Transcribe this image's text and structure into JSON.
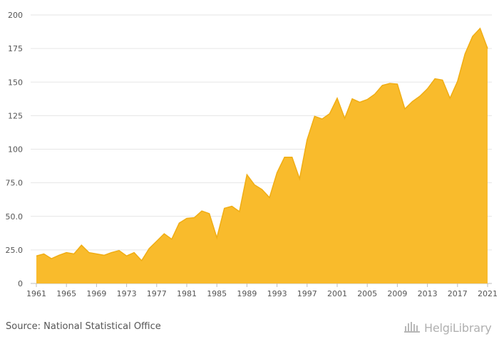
{
  "chart_data": {
    "type": "area",
    "title": "",
    "xlabel": "",
    "ylabel": "",
    "ylim": [
      0,
      200
    ],
    "y_ticks": [
      "0",
      "25.0",
      "50.0",
      "75.0",
      "100",
      "125",
      "150",
      "175",
      "200"
    ],
    "x_ticks": [
      "1961",
      "1965",
      "1969",
      "1973",
      "1977",
      "1981",
      "1985",
      "1989",
      "1993",
      "1997",
      "2001",
      "2005",
      "2009",
      "2013",
      "2017",
      "2021"
    ],
    "x": [
      1961,
      1962,
      1963,
      1964,
      1965,
      1966,
      1967,
      1968,
      1969,
      1970,
      1971,
      1972,
      1973,
      1974,
      1975,
      1976,
      1977,
      1978,
      1979,
      1980,
      1981,
      1982,
      1983,
      1984,
      1985,
      1986,
      1987,
      1988,
      1989,
      1990,
      1991,
      1992,
      1993,
      1994,
      1995,
      1996,
      1997,
      1998,
      1999,
      2000,
      2001,
      2002,
      2003,
      2004,
      2005,
      2006,
      2007,
      2008,
      2009,
      2010,
      2011,
      2012,
      2013,
      2014,
      2015,
      2016,
      2017,
      2018,
      2019,
      2020,
      2021
    ],
    "values": [
      20.5,
      22.0,
      18.5,
      21.0,
      23.0,
      22.0,
      28.5,
      23.0,
      22.0,
      21.0,
      23.0,
      24.5,
      20.5,
      23.0,
      17.0,
      26.0,
      31.5,
      37.0,
      33.0,
      45.0,
      48.5,
      49.0,
      54.0,
      52.0,
      34.0,
      56.0,
      57.5,
      53.5,
      81.0,
      73.5,
      70.0,
      64.0,
      82.5,
      94.0,
      94.0,
      78.0,
      107.0,
      124.5,
      122.5,
      126.5,
      138.0,
      123.0,
      137.5,
      135.0,
      137.0,
      141.0,
      147.5,
      149.0,
      148.5,
      130.0,
      135.5,
      139.5,
      145.0,
      152.5,
      151.5,
      138.0,
      150.5,
      171.0,
      184.0,
      190.0,
      175.0
    ],
    "fill_color": "#f9bb2c",
    "line_color": "#f0ad14"
  },
  "footer": {
    "source_text": "Source: National Statistical Office",
    "logo_text": "HelgiLibrary"
  }
}
